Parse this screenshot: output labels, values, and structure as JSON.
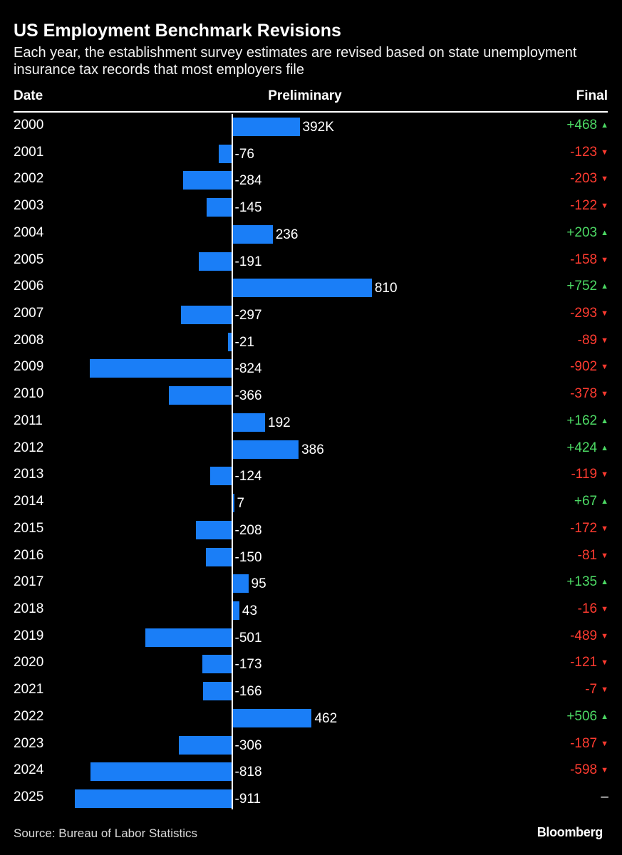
{
  "title": "US Employment Benchmark Revisions",
  "subtitle": "Each year, the establishment survey estimates are revised based on state unemployment insurance tax records that most employers file",
  "headers": {
    "date": "Date",
    "preliminary": "Preliminary",
    "final": "Final"
  },
  "colors": {
    "bar": "#1a7ef7",
    "positive": "#4cd964",
    "negative": "#ff3b30",
    "neutral": "#ffffff",
    "background": "#000000"
  },
  "source": "Source: Bureau of Labor Statistics",
  "brand": "Bloomberg",
  "chart_data": {
    "type": "bar",
    "orientation": "horizontal",
    "unit": "K",
    "xlim": [
      -911,
      810
    ],
    "grid": false,
    "categories": [
      "2000",
      "2001",
      "2002",
      "2003",
      "2004",
      "2005",
      "2006",
      "2007",
      "2008",
      "2009",
      "2010",
      "2011",
      "2012",
      "2013",
      "2014",
      "2015",
      "2016",
      "2017",
      "2018",
      "2019",
      "2020",
      "2021",
      "2022",
      "2023",
      "2024",
      "2025"
    ],
    "series": [
      {
        "name": "Preliminary",
        "values": [
          392,
          -76,
          -284,
          -145,
          236,
          -191,
          810,
          -297,
          -21,
          -824,
          -366,
          192,
          386,
          -124,
          7,
          -208,
          -150,
          95,
          43,
          -501,
          -173,
          -166,
          462,
          -306,
          -818,
          -911
        ]
      },
      {
        "name": "Final",
        "values": [
          468,
          -123,
          -203,
          -122,
          203,
          -158,
          752,
          -293,
          -89,
          -902,
          -378,
          162,
          424,
          -119,
          67,
          -172,
          -81,
          135,
          -16,
          -489,
          -121,
          -7,
          506,
          -187,
          -598,
          null
        ]
      }
    ],
    "preliminary_labels": [
      "392K",
      "-76",
      "-284",
      "-145",
      "236",
      "-191",
      "810",
      "-297",
      "-21",
      "-824",
      "-366",
      "192",
      "386",
      "-124",
      "7",
      "-208",
      "-150",
      "95",
      "43",
      "-501",
      "-173",
      "-166",
      "462",
      "-306",
      "-818",
      "-911"
    ],
    "final_labels": [
      "+468",
      "-123",
      "-203",
      "-122",
      "+203",
      "-158",
      "+752",
      "-293",
      "-89",
      "-902",
      "-378",
      "+162",
      "+424",
      "-119",
      "+67",
      "-172",
      "-81",
      "+135",
      "-16",
      "-489",
      "-121",
      "-7",
      "+506",
      "-187",
      "-598",
      "–"
    ],
    "final_directions": [
      "up",
      "down",
      "down",
      "down",
      "up",
      "down",
      "up",
      "down",
      "down",
      "down",
      "down",
      "up",
      "up",
      "down",
      "up",
      "down",
      "down",
      "up",
      "down",
      "down",
      "down",
      "down",
      "up",
      "down",
      "down",
      "none"
    ]
  }
}
